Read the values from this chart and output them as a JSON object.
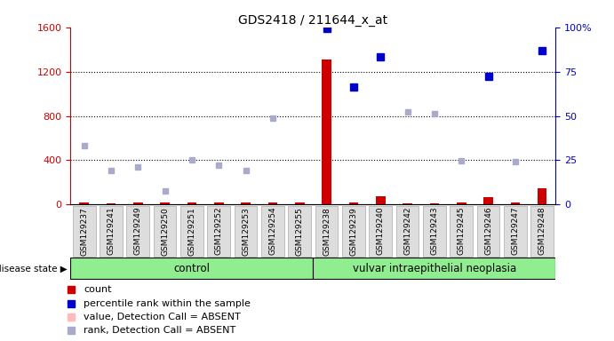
{
  "title": "GDS2418 / 211644_x_at",
  "samples": [
    "GSM129237",
    "GSM129241",
    "GSM129249",
    "GSM129250",
    "GSM129251",
    "GSM129252",
    "GSM129253",
    "GSM129254",
    "GSM129255",
    "GSM129238",
    "GSM129239",
    "GSM129240",
    "GSM129242",
    "GSM129243",
    "GSM129245",
    "GSM129246",
    "GSM129247",
    "GSM129248"
  ],
  "n_control": 9,
  "n_neoplasia": 9,
  "count_values": [
    20,
    15,
    18,
    20,
    16,
    18,
    19,
    17,
    18,
    1310,
    20,
    75,
    12,
    14,
    16,
    70,
    18,
    145
  ],
  "percentile_rank_left": [
    null,
    null,
    null,
    null,
    null,
    null,
    null,
    null,
    null,
    1590,
    1060,
    1335,
    null,
    null,
    null,
    1160,
    null,
    1390
  ],
  "rank_absent": [
    530,
    305,
    340,
    120,
    405,
    355,
    310,
    780,
    null,
    null,
    null,
    null,
    840,
    820,
    395,
    null,
    390,
    null
  ],
  "ylim_left": [
    0,
    1600
  ],
  "ylim_right": [
    0,
    100
  ],
  "yticks_left": [
    0,
    400,
    800,
    1200,
    1600
  ],
  "yticks_right": [
    0,
    25,
    50,
    75,
    100
  ],
  "left_axis_color": "#cc0000",
  "right_axis_color": "#0000cc",
  "count_color": "#cc0000",
  "percentile_color": "#0000cc",
  "rank_absent_color": "#aaaacc",
  "tick_label_bg": "#dddddd",
  "tick_label_edge": "#aaaaaa",
  "group_fill": "#90ee90",
  "group_edge": "#000000",
  "legend_items": [
    {
      "label": "count",
      "color": "#cc0000"
    },
    {
      "label": "percentile rank within the sample",
      "color": "#0000cc"
    },
    {
      "label": "value, Detection Call = ABSENT",
      "color": "#ffbbbb"
    },
    {
      "label": "rank, Detection Call = ABSENT",
      "color": "#aaaacc"
    }
  ],
  "control_label": "control",
  "neoplasia_label": "vulvar intraepithelial neoplasia",
  "disease_state_label": "disease state"
}
